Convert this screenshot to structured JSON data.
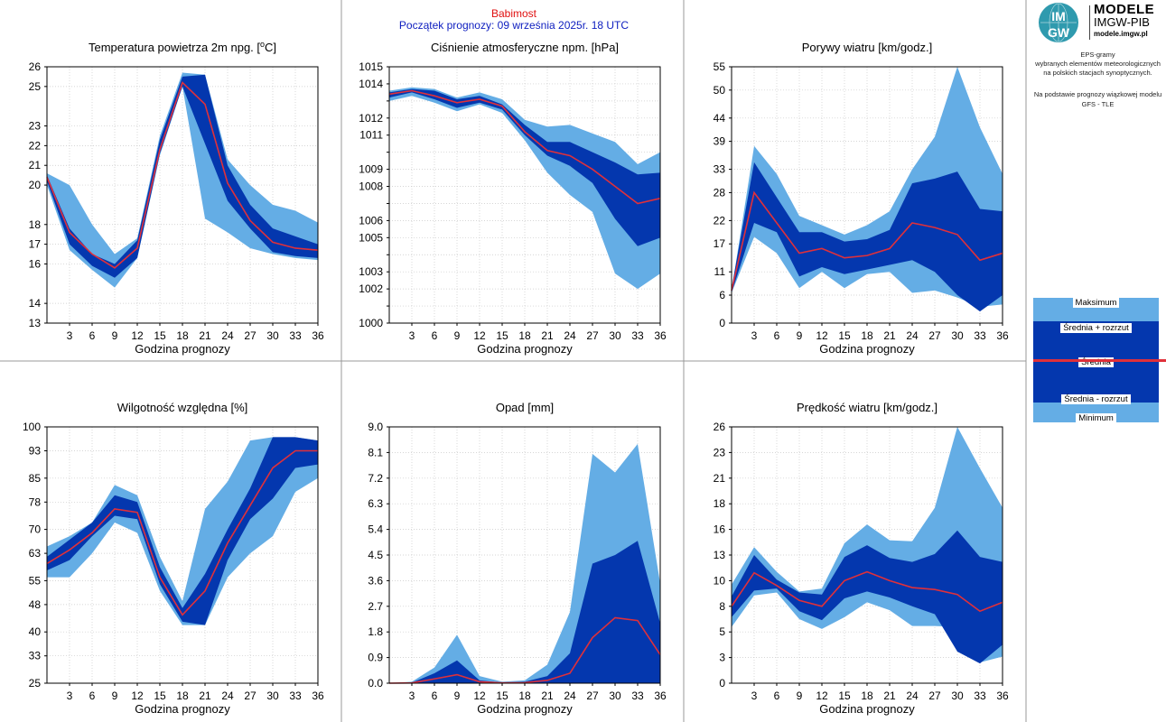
{
  "header": {
    "station": "Babimost",
    "forecast_start": "Początek prognozy: 09 września 2025r. 18 UTC"
  },
  "logo": {
    "badge_top": "IM",
    "badge_bottom": "GW",
    "title": "MODELE",
    "org": "IMGW-PIB",
    "url": "modele.imgw.pl"
  },
  "description": {
    "line1": "EPS-gramy",
    "line2": "wybranych elementów meteorologicznych",
    "line3": "na polskich stacjach  synoptycznych.",
    "line4": "Na podstawie prognozy wiązkowej modelu",
    "line5": "GFS - TLE"
  },
  "legend": {
    "max": "Maksimum",
    "mean_plus": "Średnia + rozrzut",
    "mean": "Średnia",
    "mean_minus": "Średnia - rozrzut",
    "min": "Minimum"
  },
  "colors": {
    "outer_band": "#64ADE5",
    "inner_band": "#0437AE",
    "mean_line": "#E0303A",
    "grid": "#C8C8C8",
    "station": "#E01010",
    "forecast_start": "#1020C0"
  },
  "chart_data": [
    {
      "type": "area",
      "title": "Temperatura powietrza 2m npg. [°C]",
      "xlabel": "Godzina prognozy",
      "ylabel": "",
      "x": [
        0,
        3,
        6,
        9,
        12,
        15,
        18,
        21,
        24,
        27,
        30,
        33,
        36
      ],
      "xticks": [
        3,
        6,
        9,
        12,
        15,
        18,
        21,
        24,
        27,
        30,
        33,
        36
      ],
      "ylim": [
        13,
        26
      ],
      "yticks": [
        13,
        14,
        16,
        17,
        18,
        20,
        21,
        22,
        23,
        25,
        26
      ],
      "yticklabels": [
        "13",
        "14",
        "16",
        "17",
        "18",
        "20",
        "21",
        "22",
        "23",
        "25",
        "26"
      ],
      "grid": true,
      "series": [
        {
          "name": "Maksimum",
          "values": [
            20.6,
            20.0,
            18.0,
            16.5,
            17.3,
            22.5,
            25.7,
            25.6,
            21.3,
            20.0,
            19.0,
            18.7,
            18.1
          ]
        },
        {
          "name": "Średnia + rozrzut",
          "values": [
            20.5,
            17.8,
            16.5,
            16.0,
            17.2,
            22.3,
            25.5,
            25.6,
            21.0,
            19.0,
            17.8,
            17.4,
            17.0
          ]
        },
        {
          "name": "Średnia",
          "values": [
            20.4,
            17.6,
            16.5,
            15.8,
            16.8,
            21.8,
            25.2,
            24.1,
            20.1,
            18.2,
            17.1,
            16.8,
            16.7
          ]
        },
        {
          "name": "Średnia - rozrzut",
          "values": [
            20.2,
            17.0,
            15.9,
            15.3,
            16.3,
            21.6,
            25.0,
            22.1,
            19.2,
            17.8,
            16.6,
            16.4,
            16.3
          ]
        },
        {
          "name": "Minimum",
          "values": [
            20.0,
            16.7,
            15.7,
            14.8,
            16.3,
            21.5,
            25.0,
            18.3,
            17.6,
            16.8,
            16.5,
            16.3,
            16.2
          ]
        }
      ]
    },
    {
      "type": "area",
      "title": "Ciśnienie atmosferyczne npm. [hPa]",
      "xlabel": "Godzina prognozy",
      "ylabel": "",
      "x": [
        0,
        3,
        6,
        9,
        12,
        15,
        18,
        21,
        24,
        27,
        30,
        33,
        36
      ],
      "xticks": [
        3,
        6,
        9,
        12,
        15,
        18,
        21,
        24,
        27,
        30,
        33,
        36
      ],
      "ylim": [
        1000,
        1015
      ],
      "yticks": [
        1000,
        1001,
        1002,
        1003,
        1004,
        1005,
        1006,
        1007,
        1008,
        1009,
        1010,
        1011,
        1012,
        1013,
        1014,
        1015
      ],
      "yticklabels": [
        "1000",
        "",
        "1002",
        "1003",
        "",
        "1005",
        "1006",
        "",
        "1008",
        "1009",
        "",
        "1011",
        "1012",
        "",
        "1014",
        "1015"
      ],
      "grid": true,
      "series": [
        {
          "name": "Maksimum",
          "values": [
            1013.6,
            1013.8,
            1013.7,
            1013.2,
            1013.5,
            1013.1,
            1011.9,
            1011.5,
            1011.6,
            1011.1,
            1010.6,
            1009.3,
            1010.0
          ]
        },
        {
          "name": "Średnia + rozrzut",
          "values": [
            1013.5,
            1013.7,
            1013.6,
            1013.1,
            1013.3,
            1012.8,
            1011.6,
            1010.6,
            1010.6,
            1010.0,
            1009.4,
            1008.7,
            1008.8
          ]
        },
        {
          "name": "Średnia",
          "values": [
            1013.4,
            1013.6,
            1013.3,
            1012.9,
            1013.1,
            1012.7,
            1011.2,
            1010.1,
            1009.8,
            1009.0,
            1008.0,
            1007.0,
            1007.3
          ]
        },
        {
          "name": "Średnia - rozrzut",
          "values": [
            1013.2,
            1013.5,
            1013.1,
            1012.6,
            1012.9,
            1012.5,
            1011.0,
            1009.8,
            1009.2,
            1008.2,
            1006.1,
            1004.5,
            1005.0
          ]
        },
        {
          "name": "Minimum",
          "values": [
            1013.0,
            1013.3,
            1012.9,
            1012.4,
            1012.8,
            1012.3,
            1010.7,
            1008.8,
            1007.5,
            1006.5,
            1002.9,
            1002.0,
            1002.9
          ]
        }
      ]
    },
    {
      "type": "area",
      "title": "Porywy wiatru [km/godz.]",
      "xlabel": "Godzina prognozy",
      "ylabel": "",
      "x": [
        0,
        3,
        6,
        9,
        12,
        15,
        18,
        21,
        24,
        27,
        30,
        33,
        36
      ],
      "xticks": [
        3,
        6,
        9,
        12,
        15,
        18,
        21,
        24,
        27,
        30,
        33,
        36
      ],
      "ylim": [
        0,
        55
      ],
      "yticks": [
        0,
        6,
        11,
        17,
        22,
        28,
        33,
        39,
        44,
        50,
        55
      ],
      "yticklabels": [
        "0",
        "6",
        "11",
        "17",
        "22",
        "28",
        "33",
        "39",
        "44",
        "50",
        "55"
      ],
      "grid": true,
      "series": [
        {
          "name": "Maksimum",
          "values": [
            7.0,
            38.0,
            32.0,
            23.0,
            21.0,
            19.0,
            21.0,
            24.0,
            33.0,
            40.0,
            55.0,
            42.0,
            32.0
          ]
        },
        {
          "name": "Średnia + rozrzut",
          "values": [
            7.5,
            34.5,
            27.0,
            19.5,
            19.5,
            17.5,
            18.0,
            20.0,
            30.0,
            31.0,
            32.5,
            24.5,
            24.0
          ]
        },
        {
          "name": "Średnia",
          "values": [
            7.0,
            28.0,
            21.5,
            15.0,
            16.0,
            14.0,
            14.5,
            16.0,
            21.5,
            20.5,
            19.0,
            13.5,
            15.0
          ]
        },
        {
          "name": "Średnia - rozrzut",
          "values": [
            6.5,
            21.5,
            19.5,
            10.0,
            12.0,
            10.5,
            11.5,
            12.5,
            13.5,
            11.0,
            6.0,
            2.5,
            6.0
          ]
        },
        {
          "name": "Minimum",
          "values": [
            6.5,
            18.5,
            15.0,
            7.5,
            11.0,
            7.5,
            10.5,
            11.0,
            6.5,
            7.0,
            5.5,
            3.5,
            4.0
          ]
        }
      ]
    },
    {
      "type": "area",
      "title": "Wilgotność względna [%]",
      "xlabel": "Godzina prognozy",
      "ylabel": "",
      "x": [
        0,
        3,
        6,
        9,
        12,
        15,
        18,
        21,
        24,
        27,
        30,
        33,
        36
      ],
      "xticks": [
        3,
        6,
        9,
        12,
        15,
        18,
        21,
        24,
        27,
        30,
        33,
        36
      ],
      "ylim": [
        25,
        100
      ],
      "yticks": [
        25,
        33,
        40,
        48,
        55,
        63,
        70,
        78,
        85,
        93,
        100
      ],
      "yticklabels": [
        "25",
        "33",
        "40",
        "48",
        "55",
        "63",
        "70",
        "78",
        "85",
        "93",
        "100"
      ],
      "grid": true,
      "series": [
        {
          "name": "Maksimum",
          "values": [
            65.0,
            68.0,
            72.0,
            83.0,
            80.0,
            62.0,
            49.0,
            76.0,
            84.0,
            96.0,
            97.0,
            97.0,
            96.0
          ]
        },
        {
          "name": "Średnia + rozrzut",
          "values": [
            62.0,
            67.0,
            72.0,
            80.0,
            78.0,
            59.0,
            47.0,
            57.0,
            70.0,
            82.0,
            97.0,
            97.0,
            96.0
          ]
        },
        {
          "name": "Średnia",
          "values": [
            60.0,
            64.0,
            69.0,
            76.0,
            75.0,
            56.0,
            45.0,
            52.0,
            66.0,
            77.0,
            88.0,
            93.0,
            93.0
          ]
        },
        {
          "name": "Średnia - rozrzut",
          "values": [
            58.0,
            61.0,
            68.0,
            74.0,
            73.0,
            54.0,
            43.0,
            42.0,
            61.0,
            73.0,
            79.0,
            88.0,
            89.0
          ]
        },
        {
          "name": "Minimum",
          "values": [
            56.0,
            56.0,
            63.0,
            72.0,
            69.0,
            52.0,
            42.0,
            42.0,
            56.0,
            63.0,
            68.0,
            81.0,
            85.0
          ]
        }
      ]
    },
    {
      "type": "area",
      "title": "Opad [mm]",
      "xlabel": "Godzina prognozy",
      "ylabel": "",
      "x": [
        0,
        3,
        6,
        9,
        12,
        15,
        18,
        21,
        24,
        27,
        30,
        33,
        36
      ],
      "xticks": [
        3,
        6,
        9,
        12,
        15,
        18,
        21,
        24,
        27,
        30,
        33,
        36
      ],
      "ylim": [
        0,
        9
      ],
      "yticks": [
        0,
        0.9,
        1.8,
        2.7,
        3.6,
        4.5,
        5.4,
        6.3,
        7.2,
        8.1,
        9.0
      ],
      "yticklabels": [
        "0.0",
        "0.9",
        "1.8",
        "2.7",
        "3.6",
        "4.5",
        "5.4",
        "6.3",
        "7.2",
        "8.1",
        "9.0"
      ],
      "grid": true,
      "series": [
        {
          "name": "Maksimum",
          "values": [
            0,
            0.05,
            0.55,
            1.7,
            0.25,
            0.05,
            0.1,
            0.65,
            2.5,
            8.05,
            7.4,
            8.4,
            3.5
          ]
        },
        {
          "name": "Średnia + rozrzut",
          "values": [
            0,
            0.02,
            0.35,
            0.8,
            0.1,
            0.02,
            0.05,
            0.25,
            1.05,
            4.2,
            4.5,
            5.0,
            2.1
          ]
        },
        {
          "name": "Średnia",
          "values": [
            0,
            0.01,
            0.15,
            0.3,
            0.05,
            0.01,
            0.02,
            0.1,
            0.35,
            1.6,
            2.3,
            2.2,
            1.0
          ]
        },
        {
          "name": "Średnia - rozrzut",
          "values": [
            0,
            0,
            0,
            0,
            0,
            0,
            0,
            0,
            0,
            0,
            0,
            0,
            0
          ]
        },
        {
          "name": "Minimum",
          "values": [
            0,
            0,
            0,
            0,
            0,
            0,
            0,
            0,
            0,
            0,
            0,
            0,
            0
          ]
        }
      ]
    },
    {
      "type": "area",
      "title": "Prędkość wiatru [km/godz.]",
      "xlabel": "Godzina prognozy",
      "ylabel": "",
      "x": [
        0,
        3,
        6,
        9,
        12,
        15,
        18,
        21,
        24,
        27,
        30,
        33,
        36
      ],
      "xticks": [
        3,
        6,
        9,
        12,
        15,
        18,
        21,
        24,
        27,
        30,
        33,
        36
      ],
      "ylim": [
        0,
        26
      ],
      "yticks": [
        0,
        2.6,
        5.2,
        7.8,
        10.4,
        13,
        15.6,
        18.2,
        20.8,
        23.4,
        26
      ],
      "yticklabels": [
        "0",
        "3",
        "5",
        "8",
        "10",
        "13",
        "16",
        "18",
        "21",
        "23",
        "26"
      ],
      "grid": true,
      "series": [
        {
          "name": "Maksimum",
          "values": [
            10.0,
            13.8,
            11.3,
            9.3,
            9.6,
            14.2,
            16.1,
            14.5,
            14.4,
            17.8,
            26.0,
            21.8,
            17.8
          ]
        },
        {
          "name": "Średnia + rozrzut",
          "values": [
            8.8,
            13.0,
            10.5,
            9.2,
            9.0,
            12.8,
            14.0,
            12.7,
            12.3,
            13.1,
            15.5,
            12.8,
            12.3
          ]
        },
        {
          "name": "Średnia",
          "values": [
            7.8,
            11.2,
            9.9,
            8.4,
            7.8,
            10.4,
            11.3,
            10.4,
            9.7,
            9.5,
            9.0,
            7.3,
            8.2
          ]
        },
        {
          "name": "Średnia - rozrzut",
          "values": [
            6.7,
            9.4,
            9.6,
            7.3,
            6.4,
            8.6,
            9.3,
            8.7,
            7.8,
            7.0,
            3.2,
            2.0,
            3.9
          ]
        },
        {
          "name": "Minimum",
          "values": [
            5.7,
            8.9,
            9.2,
            6.5,
            5.5,
            6.7,
            8.2,
            7.4,
            5.8,
            5.8,
            5.7,
            2.1,
            2.7
          ]
        }
      ]
    }
  ]
}
